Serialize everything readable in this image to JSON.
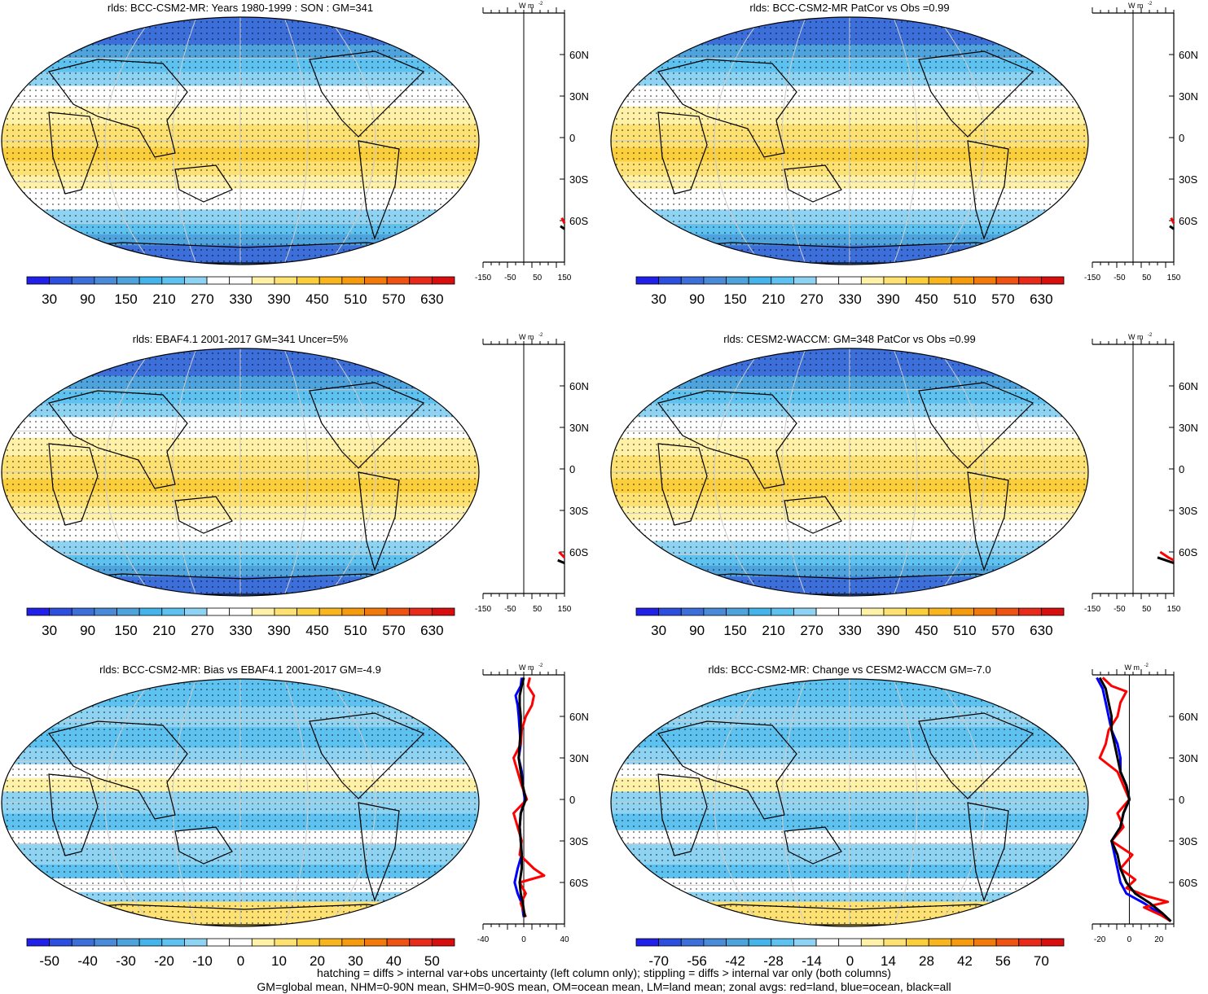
{
  "colors": {
    "blue_scale": [
      "#2020e8",
      "#2d4fe0",
      "#3d6fdb",
      "#4a8bd9",
      "#4fa3dd",
      "#45b4ea",
      "#5ec2f0",
      "#8fd3f2",
      "#ffffff",
      "#ffffff",
      "#fff2a8",
      "#fde172",
      "#fbcf3c",
      "#f9b51e",
      "#f69a0e",
      "#f27a0a",
      "#ee5314",
      "#e82a1a",
      "#d80e0e"
    ],
    "diff_scale": [
      "#2020e8",
      "#2d4fe0",
      "#3d6fdb",
      "#4a8bd9",
      "#4fa3dd",
      "#45b4ea",
      "#5ec2f0",
      "#8fd3f2",
      "#ffffff",
      "#ffffff",
      "#fff2a8",
      "#fde172",
      "#fbcf3c",
      "#f9b51e",
      "#f69a0e",
      "#f27a0a",
      "#ee5314",
      "#e82a1a",
      "#d80e0e"
    ],
    "zonal_land": "#ff0000",
    "zonal_ocean": "#0000ff",
    "zonal_all": "#000000"
  },
  "panels": [
    {
      "id": "p1",
      "title": "rlds: BCC-CSM2-MR: Years 1980-1999 : SON : GM=341",
      "colorbar_labels": [
        "30",
        "90",
        "150",
        "210",
        "270",
        "330",
        "390",
        "450",
        "510",
        "570",
        "630"
      ],
      "zonal": {
        "unit": "W m",
        "unit_sup": "-2",
        "x_ticks": [
          "-150",
          "-50",
          "50",
          "150"
        ],
        "y_ticks": [
          "60N",
          "30N",
          "0",
          "30S",
          "60S"
        ],
        "x_range": [
          -150,
          150
        ],
        "lines": [
          {
            "name": "land",
            "color": "#ff0000",
            "points": [
              [
                140,
                -58
              ],
              [
                150,
                -62
              ]
            ]
          },
          {
            "name": "all",
            "color": "#000000",
            "points": [
              [
                135,
                -64
              ],
              [
                150,
                -66
              ]
            ]
          }
        ]
      }
    },
    {
      "id": "p2",
      "title": "rlds: BCC-CSM2-MR PatCor vs Obs =0.99",
      "colorbar_labels": [
        "30",
        "90",
        "150",
        "210",
        "270",
        "330",
        "390",
        "450",
        "510",
        "570",
        "630"
      ],
      "zonal": {
        "unit": "W m",
        "unit_sup": "-2",
        "x_ticks": [
          "-150",
          "-50",
          "50",
          "150"
        ],
        "y_ticks": [
          "60N",
          "30N",
          "0",
          "30S",
          "60S"
        ],
        "x_range": [
          -150,
          150
        ],
        "lines": [
          {
            "name": "land",
            "color": "#ff0000",
            "points": [
              [
                140,
                -58
              ],
              [
                150,
                -62
              ]
            ]
          },
          {
            "name": "all",
            "color": "#000000",
            "points": [
              [
                135,
                -64
              ],
              [
                150,
                -66
              ]
            ]
          }
        ]
      }
    },
    {
      "id": "p3",
      "title": "rlds: EBAF4.1 2001-2017 GM=341 Uncer=5%",
      "colorbar_labels": [
        "30",
        "90",
        "150",
        "210",
        "270",
        "330",
        "390",
        "450",
        "510",
        "570",
        "630"
      ],
      "zonal": {
        "unit": "W m",
        "unit_sup": "-2",
        "x_ticks": [
          "-150",
          "-50",
          "50",
          "150"
        ],
        "y_ticks": [
          "60N",
          "30N",
          "0",
          "30S",
          "60S"
        ],
        "x_range": [
          -150,
          150
        ],
        "lines": [
          {
            "name": "land",
            "color": "#ff0000",
            "points": [
              [
                130,
                -60
              ],
              [
                150,
                -64
              ]
            ]
          },
          {
            "name": "all",
            "color": "#000000",
            "points": [
              [
                125,
                -66
              ],
              [
                150,
                -68
              ]
            ]
          }
        ]
      }
    },
    {
      "id": "p4",
      "title": "rlds: CESM2-WACCM: GM=348 PatCor vs Obs =0.99",
      "colorbar_labels": [
        "30",
        "90",
        "150",
        "210",
        "270",
        "330",
        "390",
        "450",
        "510",
        "570",
        "630"
      ],
      "zonal": {
        "unit": "W m",
        "unit_sup": "-2",
        "x_ticks": [
          "-150",
          "-50",
          "50",
          "150"
        ],
        "y_ticks": [
          "60N",
          "30N",
          "0",
          "30S",
          "60S"
        ],
        "x_range": [
          -150,
          150
        ],
        "lines": [
          {
            "name": "land",
            "color": "#ff0000",
            "points": [
              [
                100,
                -60
              ],
              [
                130,
                -64
              ],
              [
                150,
                -66
              ]
            ]
          },
          {
            "name": "all",
            "color": "#000000",
            "points": [
              [
                90,
                -64
              ],
              [
                120,
                -66
              ],
              [
                150,
                -68
              ]
            ]
          }
        ]
      }
    },
    {
      "id": "p5",
      "title": "rlds: BCC-CSM2-MR: Bias vs EBAF4.1 2001-2017  GM=-4.9",
      "colorbar_labels": [
        "-50",
        "-40",
        "-30",
        "-20",
        "-10",
        "0",
        "10",
        "20",
        "30",
        "40",
        "50"
      ],
      "zonal": {
        "unit": "W m",
        "unit_sup": "-2",
        "x_ticks": [
          "-40",
          "0",
          "40"
        ],
        "y_ticks": [
          "60N",
          "30N",
          "0",
          "30S",
          "60S"
        ],
        "x_range": [
          -40,
          40
        ],
        "lines": [
          {
            "name": "ocean",
            "color": "#0000ff",
            "points": [
              [
                -2,
                88
              ],
              [
                -3,
                82
              ],
              [
                -8,
                75
              ],
              [
                -6,
                68
              ],
              [
                -5,
                60
              ],
              [
                -4,
                50
              ],
              [
                -3,
                40
              ],
              [
                -5,
                30
              ],
              [
                -2,
                20
              ],
              [
                -1,
                10
              ],
              [
                1,
                0
              ],
              [
                -3,
                -10
              ],
              [
                -4,
                -20
              ],
              [
                -3,
                -30
              ],
              [
                -2,
                -40
              ],
              [
                -6,
                -50
              ],
              [
                -9,
                -60
              ],
              [
                -6,
                -68
              ],
              [
                -2,
                -75
              ],
              [
                0,
                -85
              ]
            ]
          },
          {
            "name": "land",
            "color": "#ff0000",
            "points": [
              [
                6,
                88
              ],
              [
                4,
                82
              ],
              [
                10,
                75
              ],
              [
                8,
                68
              ],
              [
                2,
                60
              ],
              [
                -2,
                50
              ],
              [
                -3,
                40
              ],
              [
                -10,
                30
              ],
              [
                -6,
                20
              ],
              [
                -2,
                10
              ],
              [
                3,
                0
              ],
              [
                -10,
                -10
              ],
              [
                -6,
                -20
              ],
              [
                -2,
                -30
              ],
              [
                -4,
                -40
              ],
              [
                10,
                -50
              ],
              [
                20,
                -55
              ],
              [
                -4,
                -60
              ],
              [
                2,
                -68
              ],
              [
                -3,
                -75
              ],
              [
                2,
                -85
              ]
            ]
          },
          {
            "name": "all",
            "color": "#000000",
            "points": [
              [
                0,
                88
              ],
              [
                -2,
                82
              ],
              [
                -4,
                75
              ],
              [
                -4,
                68
              ],
              [
                -3,
                60
              ],
              [
                -3,
                50
              ],
              [
                -4,
                40
              ],
              [
                -5,
                30
              ],
              [
                -3,
                20
              ],
              [
                -1,
                10
              ],
              [
                2,
                0
              ],
              [
                -3,
                -10
              ],
              [
                -4,
                -20
              ],
              [
                -3,
                -30
              ],
              [
                -2,
                -40
              ],
              [
                -2,
                -50
              ],
              [
                -4,
                -60
              ],
              [
                -3,
                -68
              ],
              [
                -1,
                -75
              ],
              [
                1,
                -85
              ]
            ]
          }
        ]
      }
    },
    {
      "id": "p6",
      "title": "rlds: BCC-CSM2-MR: Change vs CESM2-WACCM GM=-7.0",
      "colorbar_labels": [
        "-70",
        "-56",
        "-42",
        "-28",
        "-14",
        "0",
        "14",
        "28",
        "42",
        "56",
        "70"
      ],
      "zonal": {
        "unit": "W m",
        "unit_sup": "-2",
        "x_ticks": [
          "-20",
          "0",
          "20"
        ],
        "y_ticks": [
          "60N",
          "30N",
          "0",
          "30S",
          "60S"
        ],
        "x_range": [
          -25,
          30
        ],
        "lines": [
          {
            "name": "ocean",
            "color": "#0000ff",
            "points": [
              [
                -22,
                88
              ],
              [
                -18,
                80
              ],
              [
                -16,
                70
              ],
              [
                -14,
                60
              ],
              [
                -12,
                50
              ],
              [
                -8,
                40
              ],
              [
                -6,
                30
              ],
              [
                -6,
                20
              ],
              [
                -2,
                10
              ],
              [
                0,
                0
              ],
              [
                -4,
                -10
              ],
              [
                -6,
                -20
              ],
              [
                -12,
                -30
              ],
              [
                -10,
                -40
              ],
              [
                -8,
                -50
              ],
              [
                -6,
                -60
              ],
              [
                -2,
                -68
              ],
              [
                10,
                -75
              ],
              [
                20,
                -82
              ],
              [
                28,
                -88
              ]
            ]
          },
          {
            "name": "land",
            "color": "#ff0000",
            "points": [
              [
                -18,
                88
              ],
              [
                -12,
                82
              ],
              [
                -2,
                78
              ],
              [
                -6,
                70
              ],
              [
                -8,
                60
              ],
              [
                -14,
                50
              ],
              [
                -16,
                40
              ],
              [
                -20,
                30
              ],
              [
                -8,
                20
              ],
              [
                -4,
                10
              ],
              [
                0,
                0
              ],
              [
                -8,
                -10
              ],
              [
                -4,
                -20
              ],
              [
                -12,
                -30
              ],
              [
                2,
                -40
              ],
              [
                -6,
                -50
              ],
              [
                4,
                -58
              ],
              [
                -2,
                -64
              ],
              [
                12,
                -70
              ],
              [
                26,
                -74
              ],
              [
                10,
                -78
              ],
              [
                22,
                -84
              ],
              [
                28,
                -88
              ]
            ]
          },
          {
            "name": "all",
            "color": "#000000",
            "points": [
              [
                -20,
                88
              ],
              [
                -16,
                80
              ],
              [
                -14,
                70
              ],
              [
                -12,
                60
              ],
              [
                -12,
                50
              ],
              [
                -10,
                40
              ],
              [
                -8,
                30
              ],
              [
                -6,
                20
              ],
              [
                -2,
                10
              ],
              [
                0,
                0
              ],
              [
                -4,
                -10
              ],
              [
                -6,
                -20
              ],
              [
                -12,
                -30
              ],
              [
                -8,
                -40
              ],
              [
                -6,
                -50
              ],
              [
                -2,
                -60
              ],
              [
                4,
                -68
              ],
              [
                14,
                -75
              ],
              [
                22,
                -82
              ],
              [
                28,
                -88
              ]
            ]
          }
        ]
      }
    }
  ],
  "footer": {
    "line1": "hatching = diffs > internal var+obs uncertainty (left column only); stippling = diffs > internal var only (both columns)",
    "line2": "GM=global mean, NHM=0-90N mean, SHM=0-90S mean, OM=ocean mean, LM=land mean; zonal avgs: red=land, blue=ocean, black=all"
  }
}
